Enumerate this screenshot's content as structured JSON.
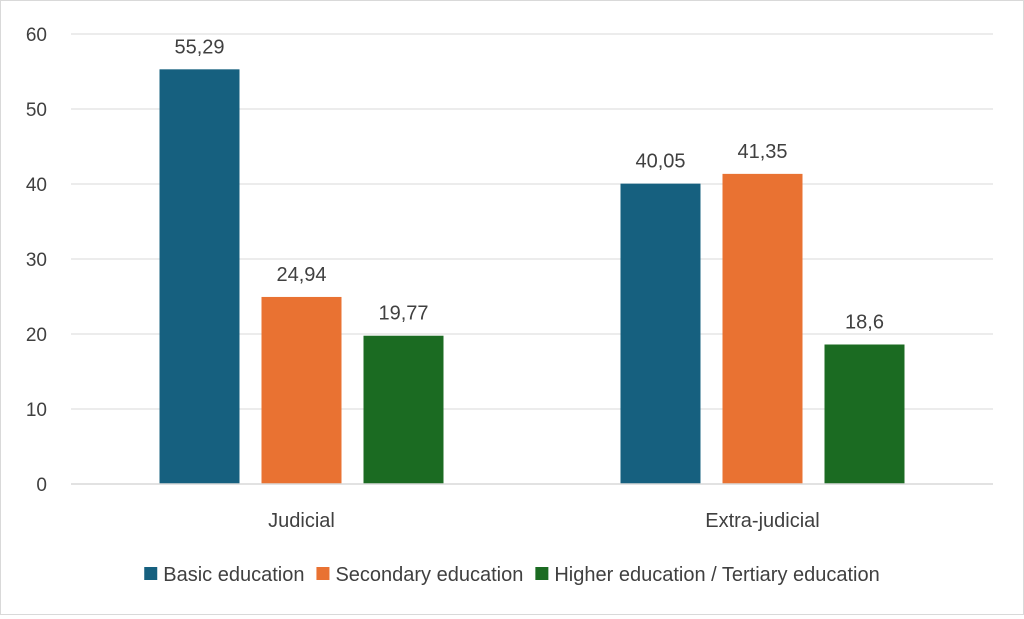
{
  "chart_data": {
    "type": "bar",
    "title": "",
    "xlabel": "",
    "ylabel": "",
    "categories": [
      "Judicial",
      "Extra-judicial"
    ],
    "series": [
      {
        "name": "Basic education",
        "values": [
          55.29,
          40.05
        ],
        "labels": [
          "55,29",
          "40,05"
        ],
        "color": "#16607f"
      },
      {
        "name": "Secondary education",
        "values": [
          24.94,
          41.35
        ],
        "labels": [
          "24,94",
          "41,35"
        ],
        "color": "#e97232"
      },
      {
        "name": "Higher education / Tertiary education",
        "values": [
          19.77,
          18.6
        ],
        "labels": [
          "19,77",
          "18,6"
        ],
        "color": "#1b6b22"
      }
    ],
    "ylim": [
      0,
      60
    ],
    "yticks": [
      0,
      10,
      20,
      30,
      40,
      50,
      60
    ],
    "grid": true,
    "legend_position": "bottom"
  }
}
